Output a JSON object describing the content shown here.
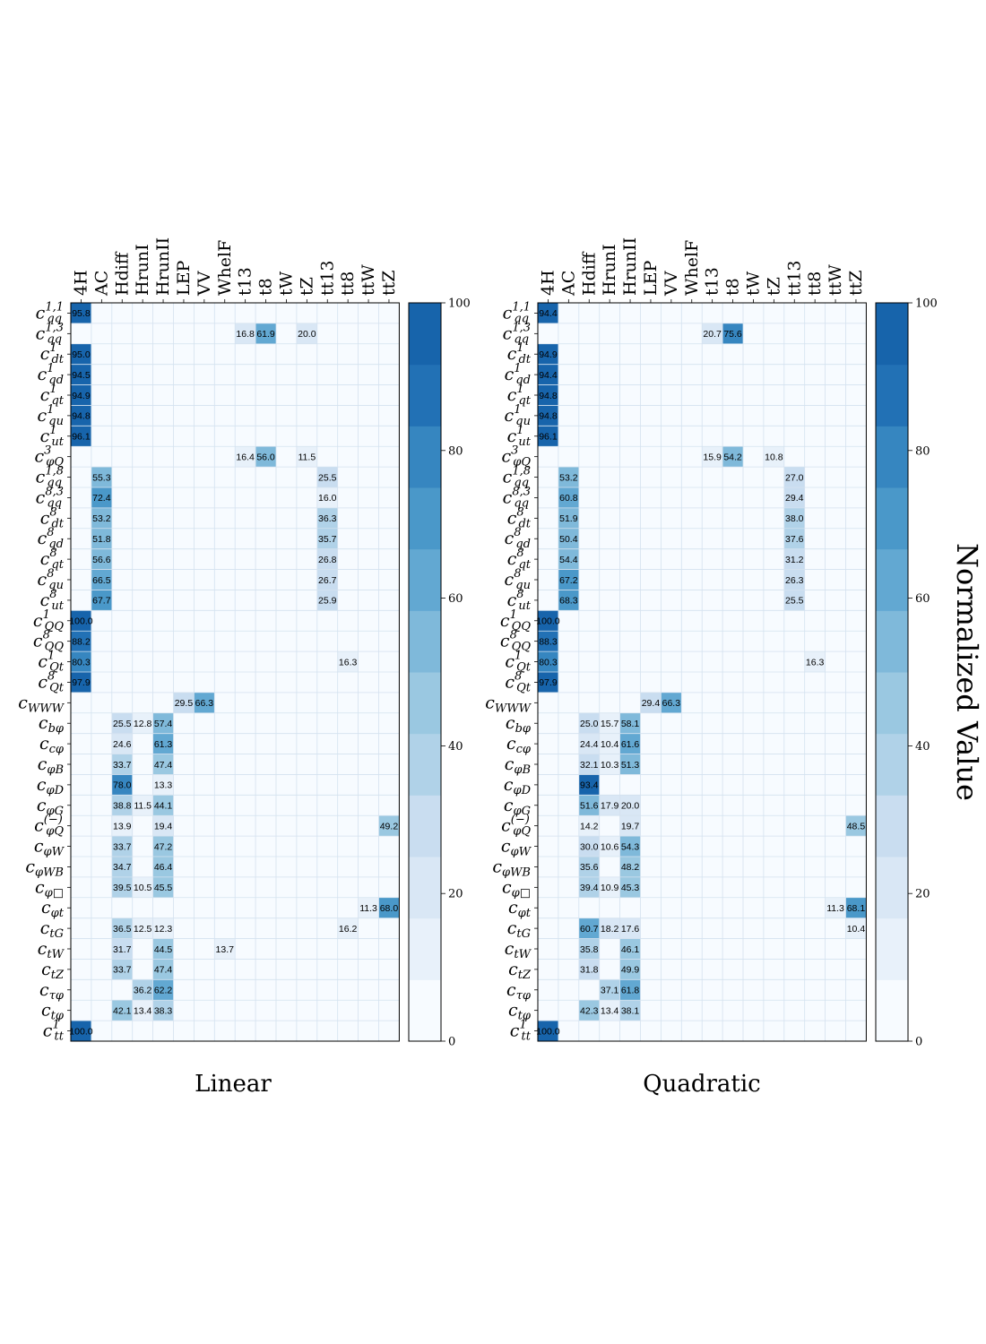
{
  "chart_data": {
    "type": "heatmap",
    "colorbar": {
      "label": "Normalized Value",
      "ticks": [
        "0",
        "20",
        "40",
        "60",
        "80",
        "100"
      ],
      "range": [
        0,
        100
      ],
      "levels": 12,
      "colors": [
        "#f7fbff",
        "#e8f1fa",
        "#d9e7f5",
        "#c9ddf0",
        "#b0d2e8",
        "#9ac8e1",
        "#7fb9da",
        "#62a8d2",
        "#4a98c9",
        "#3686c0",
        "#2271b5",
        "#1764ab"
      ]
    },
    "columns": [
      "4H",
      "AC",
      "Hdiff",
      "HrunI",
      "HrunII",
      "LEP",
      "VV",
      "WhelF",
      "t13",
      "t8",
      "tW",
      "tZ",
      "tt13",
      "tt8",
      "ttW",
      "ttZ"
    ],
    "rows": [
      {
        "base": "c",
        "sub": "qq",
        "sup": "1,1"
      },
      {
        "base": "c",
        "sub": "qq",
        "sup": "1,3"
      },
      {
        "base": "c",
        "sub": "dt",
        "sup": "1"
      },
      {
        "base": "c",
        "sub": "qd",
        "sup": "1"
      },
      {
        "base": "c",
        "sub": "qt",
        "sup": "1"
      },
      {
        "base": "c",
        "sub": "qu",
        "sup": "1"
      },
      {
        "base": "c",
        "sub": "ut",
        "sup": "1"
      },
      {
        "base": "c",
        "sub": "φQ",
        "sup": "3"
      },
      {
        "base": "c",
        "sub": "qq",
        "sup": "1,8"
      },
      {
        "base": "c",
        "sub": "qq",
        "sup": "8,3"
      },
      {
        "base": "c",
        "sub": "dt",
        "sup": "8"
      },
      {
        "base": "c",
        "sub": "qd",
        "sup": "8"
      },
      {
        "base": "c",
        "sub": "qt",
        "sup": "8"
      },
      {
        "base": "c",
        "sub": "qu",
        "sup": "8"
      },
      {
        "base": "c",
        "sub": "ut",
        "sup": "8"
      },
      {
        "base": "c",
        "sub": "QQ",
        "sup": "1"
      },
      {
        "base": "c",
        "sub": "QQ",
        "sup": "8"
      },
      {
        "base": "c",
        "sub": "Qt",
        "sup": "1"
      },
      {
        "base": "c",
        "sub": "Qt",
        "sup": "8"
      },
      {
        "base": "c",
        "sub": "WWW",
        "sup": ""
      },
      {
        "base": "c",
        "sub": "bφ",
        "sup": ""
      },
      {
        "base": "c",
        "sub": "cφ",
        "sup": ""
      },
      {
        "base": "c",
        "sub": "φB",
        "sup": ""
      },
      {
        "base": "c",
        "sub": "φD",
        "sup": ""
      },
      {
        "base": "c",
        "sub": "φG",
        "sup": ""
      },
      {
        "base": "c",
        "sub": "φQ",
        "sup": "(−)"
      },
      {
        "base": "c",
        "sub": "φW",
        "sup": ""
      },
      {
        "base": "c",
        "sub": "φWB",
        "sup": ""
      },
      {
        "base": "c",
        "sub": "φ□",
        "sup": ""
      },
      {
        "base": "c",
        "sub": "φt",
        "sup": ""
      },
      {
        "base": "c",
        "sub": "tG",
        "sup": ""
      },
      {
        "base": "c",
        "sub": "tW",
        "sup": ""
      },
      {
        "base": "c",
        "sub": "tZ",
        "sup": ""
      },
      {
        "base": "c",
        "sub": "τφ",
        "sup": ""
      },
      {
        "base": "c",
        "sub": "tφ",
        "sup": ""
      },
      {
        "base": "c",
        "sub": "tt",
        "sup": "1"
      }
    ],
    "panels": [
      {
        "title": "Linear",
        "cells": [
          [
            0,
            0,
            95.8
          ],
          [
            1,
            8,
            16.8
          ],
          [
            1,
            9,
            61.9
          ],
          [
            1,
            11,
            20.0
          ],
          [
            2,
            0,
            95.0
          ],
          [
            3,
            0,
            94.5
          ],
          [
            4,
            0,
            94.9
          ],
          [
            5,
            0,
            94.8
          ],
          [
            6,
            0,
            96.1
          ],
          [
            7,
            8,
            16.4
          ],
          [
            7,
            9,
            56.0
          ],
          [
            7,
            11,
            11.5
          ],
          [
            8,
            1,
            55.3
          ],
          [
            8,
            12,
            25.5
          ],
          [
            9,
            1,
            72.4
          ],
          [
            9,
            12,
            16.0
          ],
          [
            10,
            1,
            53.2
          ],
          [
            10,
            12,
            36.3
          ],
          [
            11,
            1,
            51.8
          ],
          [
            11,
            12,
            35.7
          ],
          [
            12,
            1,
            56.6
          ],
          [
            12,
            12,
            26.8
          ],
          [
            13,
            1,
            66.5
          ],
          [
            13,
            12,
            26.7
          ],
          [
            14,
            1,
            67.7
          ],
          [
            14,
            12,
            25.9
          ],
          [
            15,
            0,
            100.0
          ],
          [
            16,
            0,
            88.2
          ],
          [
            17,
            0,
            80.3
          ],
          [
            17,
            13,
            16.3
          ],
          [
            18,
            0,
            97.9
          ],
          [
            19,
            5,
            29.5
          ],
          [
            19,
            6,
            66.3
          ],
          [
            20,
            2,
            25.5
          ],
          [
            20,
            3,
            12.8
          ],
          [
            20,
            4,
            57.4
          ],
          [
            21,
            2,
            24.6
          ],
          [
            21,
            4,
            61.3
          ],
          [
            22,
            2,
            33.7
          ],
          [
            22,
            4,
            47.4
          ],
          [
            23,
            2,
            78.0
          ],
          [
            23,
            4,
            13.3
          ],
          [
            24,
            2,
            38.8
          ],
          [
            24,
            3,
            11.5
          ],
          [
            24,
            4,
            44.1
          ],
          [
            25,
            2,
            13.9
          ],
          [
            25,
            4,
            19.4
          ],
          [
            25,
            15,
            49.2
          ],
          [
            26,
            2,
            33.7
          ],
          [
            26,
            4,
            47.2
          ],
          [
            27,
            2,
            34.7
          ],
          [
            27,
            4,
            46.4
          ],
          [
            28,
            2,
            39.5
          ],
          [
            28,
            3,
            10.5
          ],
          [
            28,
            4,
            45.5
          ],
          [
            29,
            14,
            11.3
          ],
          [
            29,
            15,
            68.0
          ],
          [
            30,
            2,
            36.5
          ],
          [
            30,
            3,
            12.5
          ],
          [
            30,
            4,
            12.3
          ],
          [
            30,
            13,
            16.2
          ],
          [
            31,
            2,
            31.7
          ],
          [
            31,
            4,
            44.5
          ],
          [
            31,
            7,
            13.7
          ],
          [
            32,
            2,
            33.7
          ],
          [
            32,
            4,
            47.4
          ],
          [
            33,
            3,
            36.2
          ],
          [
            33,
            4,
            62.2
          ],
          [
            34,
            2,
            42.1
          ],
          [
            34,
            3,
            13.4
          ],
          [
            34,
            4,
            38.3
          ],
          [
            35,
            0,
            100.0
          ]
        ]
      },
      {
        "title": "Quadratic",
        "cells": [
          [
            0,
            0,
            94.4
          ],
          [
            1,
            8,
            20.7
          ],
          [
            1,
            9,
            75.6
          ],
          [
            2,
            0,
            94.9
          ],
          [
            3,
            0,
            94.4
          ],
          [
            4,
            0,
            94.8
          ],
          [
            5,
            0,
            94.8
          ],
          [
            6,
            0,
            96.1
          ],
          [
            7,
            8,
            15.9
          ],
          [
            7,
            9,
            54.2
          ],
          [
            7,
            11,
            10.8
          ],
          [
            8,
            1,
            53.2
          ],
          [
            8,
            12,
            27.0
          ],
          [
            9,
            1,
            60.8
          ],
          [
            9,
            12,
            29.4
          ],
          [
            10,
            1,
            51.9
          ],
          [
            10,
            12,
            38.0
          ],
          [
            11,
            1,
            50.4
          ],
          [
            11,
            12,
            37.6
          ],
          [
            12,
            1,
            54.4
          ],
          [
            12,
            12,
            31.2
          ],
          [
            13,
            1,
            67.2
          ],
          [
            13,
            12,
            26.3
          ],
          [
            14,
            1,
            68.3
          ],
          [
            14,
            12,
            25.5
          ],
          [
            15,
            0,
            100.0
          ],
          [
            16,
            0,
            88.3
          ],
          [
            17,
            0,
            80.3
          ],
          [
            17,
            13,
            16.3
          ],
          [
            18,
            0,
            97.9
          ],
          [
            19,
            5,
            29.4
          ],
          [
            19,
            6,
            66.3
          ],
          [
            20,
            2,
            25.0
          ],
          [
            20,
            3,
            15.7
          ],
          [
            20,
            4,
            58.1
          ],
          [
            21,
            2,
            24.4
          ],
          [
            21,
            3,
            10.4
          ],
          [
            21,
            4,
            61.6
          ],
          [
            22,
            2,
            32.1
          ],
          [
            22,
            3,
            10.3
          ],
          [
            22,
            4,
            51.3
          ],
          [
            23,
            2,
            93.4
          ],
          [
            24,
            2,
            51.6
          ],
          [
            24,
            3,
            17.9
          ],
          [
            24,
            4,
            20.0
          ],
          [
            25,
            2,
            14.2
          ],
          [
            25,
            4,
            19.7
          ],
          [
            25,
            15,
            48.5
          ],
          [
            26,
            2,
            30.0
          ],
          [
            26,
            3,
            10.6
          ],
          [
            26,
            4,
            54.3
          ],
          [
            27,
            2,
            35.6
          ],
          [
            27,
            4,
            48.2
          ],
          [
            28,
            2,
            39.4
          ],
          [
            28,
            3,
            10.9
          ],
          [
            28,
            4,
            45.3
          ],
          [
            29,
            14,
            11.3
          ],
          [
            29,
            15,
            68.1
          ],
          [
            30,
            2,
            60.7
          ],
          [
            30,
            3,
            18.2
          ],
          [
            30,
            4,
            17.6
          ],
          [
            30,
            15,
            10.4
          ],
          [
            31,
            2,
            35.8
          ],
          [
            31,
            4,
            46.1
          ],
          [
            32,
            2,
            31.8
          ],
          [
            32,
            4,
            49.9
          ],
          [
            33,
            3,
            37.1
          ],
          [
            33,
            4,
            61.8
          ],
          [
            34,
            2,
            42.3
          ],
          [
            34,
            3,
            13.4
          ],
          [
            34,
            4,
            38.1
          ],
          [
            35,
            0,
            100.0
          ]
        ]
      }
    ]
  }
}
